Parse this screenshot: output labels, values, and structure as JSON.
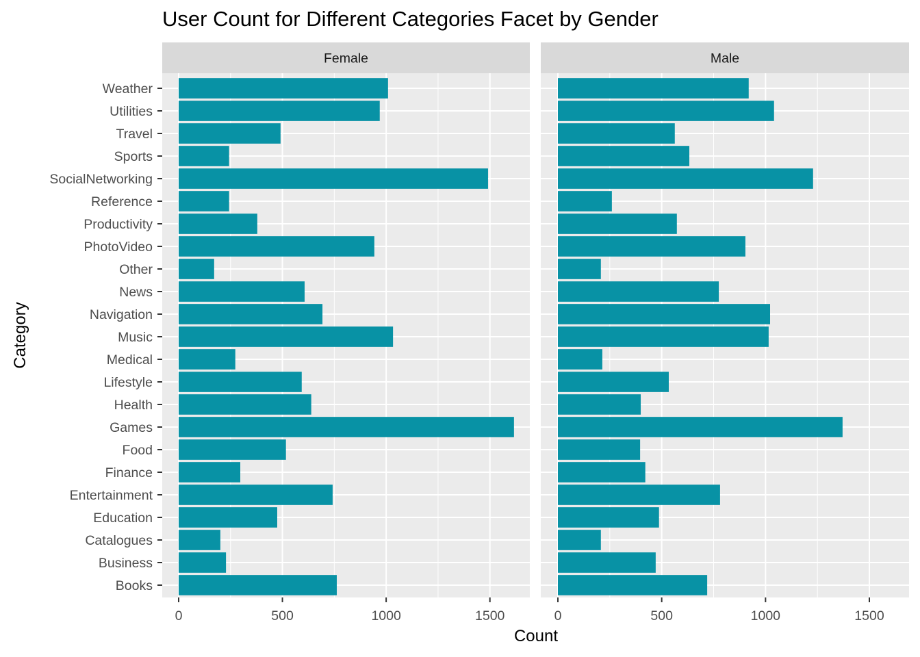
{
  "chart_data": {
    "type": "bar",
    "orientation": "horizontal",
    "title": "User Count for Different Categories Facet by Gender",
    "xlabel": "Count",
    "ylabel": "Category",
    "xlim": [
      0,
      1700
    ],
    "x_ticks": [
      0,
      500,
      1000,
      1500
    ],
    "x_tick_labels": [
      "0",
      "500",
      "1000",
      "1500"
    ],
    "grid": true,
    "bar_color": "#0892A5",
    "panel_background": "#EBEBEB",
    "strip_background": "#D9D9D9",
    "categories": [
      "Weather",
      "Utilities",
      "Travel",
      "Sports",
      "SocialNetworking",
      "Reference",
      "Productivity",
      "PhotoVideo",
      "Other",
      "News",
      "Navigation",
      "Music",
      "Medical",
      "Lifestyle",
      "Health",
      "Games",
      "Food",
      "Finance",
      "Entertainment",
      "Education",
      "Catalogues",
      "Business",
      "Books"
    ],
    "facets": [
      {
        "name": "Female",
        "values": [
          1009,
          969,
          491,
          243,
          1491,
          243,
          379,
          943,
          171,
          607,
          693,
          1033,
          273,
          593,
          639,
          1616,
          517,
          297,
          742,
          475,
          201,
          228,
          762
        ]
      },
      {
        "name": "Male",
        "values": [
          919,
          1041,
          563,
          633,
          1229,
          260,
          573,
          903,
          207,
          775,
          1022,
          1015,
          214,
          534,
          399,
          1371,
          396,
          421,
          781,
          487,
          207,
          471,
          719
        ]
      }
    ]
  }
}
